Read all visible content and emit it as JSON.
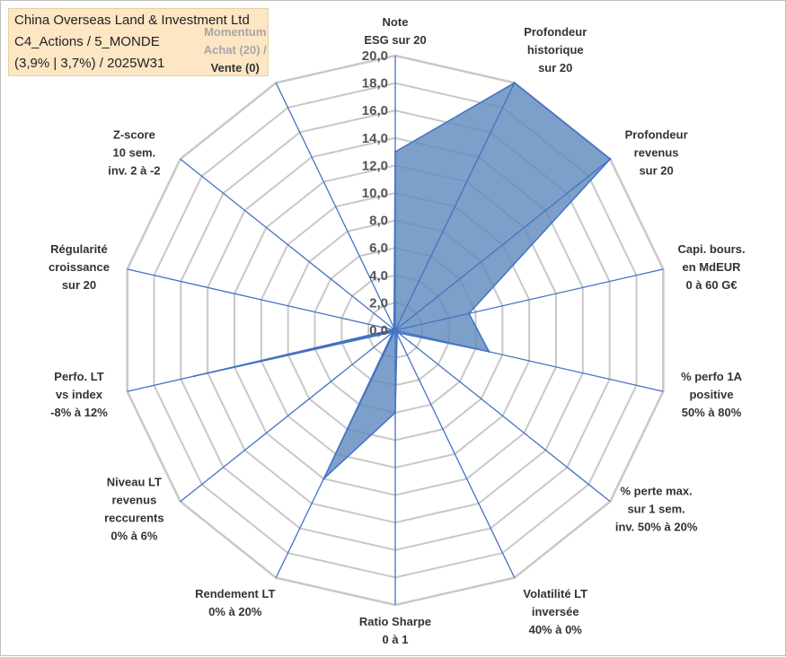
{
  "title": {
    "line1": "China Overseas Land & Investment Ltd",
    "line2": "C4_Actions / 5_MONDE",
    "line3": "(3,9% | 3,7%) / 2025W31"
  },
  "colors": {
    "fill": "#5f8bbd",
    "fill_opacity": 0.82,
    "stroke": "#4472c4",
    "spoke": "#4472c4",
    "grid": "#c8c8c8",
    "label_muted": "#a6a6a6",
    "label": "#333333"
  },
  "chart_data": {
    "type": "radar",
    "rmin": 0,
    "rmax": 20,
    "tick_step": 2,
    "tick_labels": [
      "0,0",
      "2,0",
      "4,0",
      "6,0",
      "8,0",
      "10,0",
      "12,0",
      "14,0",
      "16,0",
      "18,0",
      "20,0"
    ],
    "axes": [
      {
        "label": [
          "Note",
          "ESG sur 20"
        ],
        "value": 13.0
      },
      {
        "label": [
          "Profondeur",
          "historique",
          "sur 20"
        ],
        "value": 20.0
      },
      {
        "label": [
          "Profondeur",
          "revenus",
          "sur 20"
        ],
        "value": 20.0
      },
      {
        "label": [
          "Capi. bours.",
          "en MdEUR",
          "0 à 60 G€"
        ],
        "value": 5.5
      },
      {
        "label": [
          "% perfo 1A",
          "positive",
          "50% à 80%"
        ],
        "value": 7.0
      },
      {
        "label": [
          "% perte max.",
          "sur 1 sem.",
          "inv. 50% à 20%"
        ],
        "value": 0.3
      },
      {
        "label": [
          "Volatilité LT",
          "inversée",
          "40% à 0%"
        ],
        "value": 0.3
      },
      {
        "label": [
          "Ratio Sharpe",
          "0 à 1"
        ],
        "value": 6.0
      },
      {
        "label": [
          "Rendement LT",
          "0% à 20%"
        ],
        "value": 12.0
      },
      {
        "label": [
          "Niveau LT",
          "revenus",
          "reccurents",
          "0% à 6%"
        ],
        "value": 0.2
      },
      {
        "label": [
          "Perfo. LT",
          "vs index",
          "-8% à 12%"
        ],
        "value": 15.0
      },
      {
        "label": [
          "Régularité",
          "croissance",
          "sur 20"
        ],
        "value": 0.2
      },
      {
        "label": [
          "Z-score",
          "10 sem.",
          "inv. 2 à -2"
        ],
        "value": 0.2
      },
      {
        "label_muted": [
          "Momentum",
          "Achat (20) /"
        ],
        "label": [
          "Vente (0)"
        ],
        "value": 0.2
      }
    ]
  }
}
